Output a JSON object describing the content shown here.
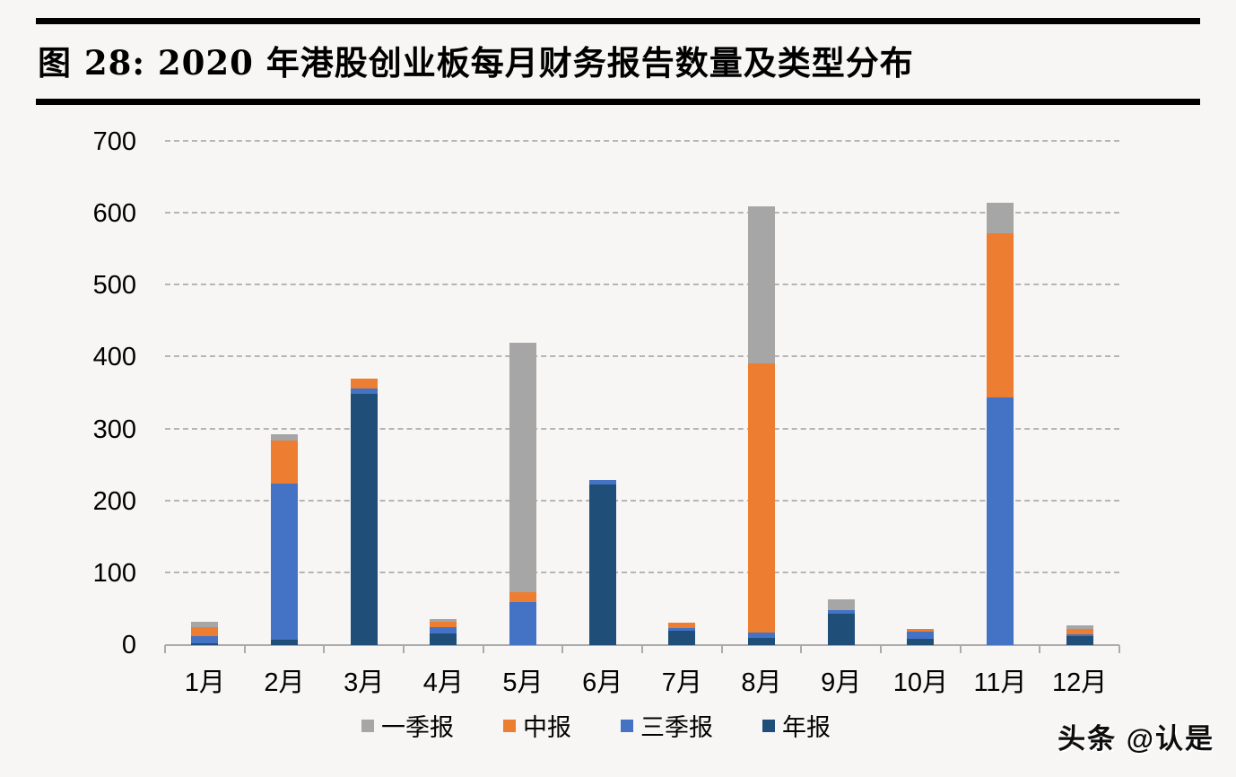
{
  "figure": {
    "title": "图 28: 2020 年港股创业板每月财务报告数量及类型分布"
  },
  "watermark": "头条 @认是",
  "chart_data": {
    "type": "bar",
    "stacked": true,
    "title": "2020 年港股创业板每月财务报告数量及类型分布",
    "categories": [
      "1月",
      "2月",
      "3月",
      "4月",
      "5月",
      "6月",
      "7月",
      "8月",
      "9月",
      "10月",
      "11月",
      "12月"
    ],
    "series": [
      {
        "name": "年报",
        "color": "#1f4e79",
        "values": [
          3,
          7,
          350,
          16,
          0,
          223,
          20,
          10,
          44,
          9,
          0,
          13
        ]
      },
      {
        "name": "三季报",
        "color": "#4472c4",
        "values": [
          10,
          218,
          7,
          9,
          60,
          7,
          4,
          8,
          5,
          10,
          345,
          2
        ]
      },
      {
        "name": "中报",
        "color": "#ed7d31",
        "values": [
          12,
          60,
          13,
          8,
          14,
          0,
          7,
          374,
          0,
          3,
          228,
          8
        ]
      },
      {
        "name": "一季报",
        "color": "#a6a6a6",
        "values": [
          7,
          8,
          0,
          3,
          346,
          0,
          0,
          218,
          15,
          0,
          42,
          5
        ]
      }
    ],
    "totals": [
      32,
      293,
      370,
      36,
      420,
      230,
      31,
      610,
      64,
      22,
      615,
      28
    ],
    "legend": [
      "一季报",
      "中报",
      "三季报",
      "年报"
    ],
    "legend_position": "bottom",
    "xlabel": "",
    "ylabel": "",
    "ylim": [
      0,
      700
    ],
    "yticks": [
      0,
      100,
      200,
      300,
      400,
      500,
      600,
      700
    ],
    "grid": "dashed-horizontal",
    "gridline_color": "#b5b5b5",
    "axis_color": "#ababab"
  }
}
